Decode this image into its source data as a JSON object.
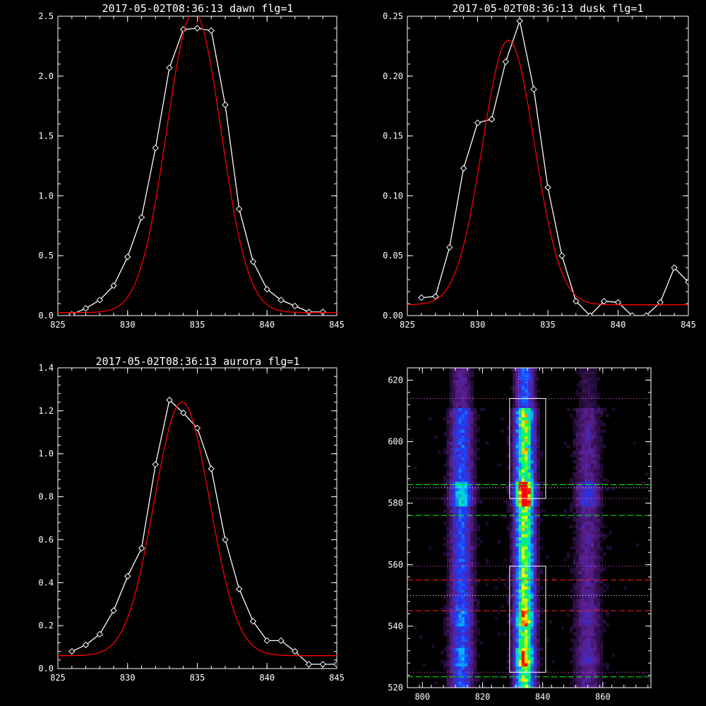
{
  "chart_data": [
    {
      "type": "line",
      "title": "2017-05-02T08:36:13 dawn flg=1",
      "xlim": [
        825,
        845
      ],
      "ylim": [
        0,
        2.5
      ],
      "xticks": [
        825,
        830,
        835,
        840,
        845
      ],
      "yticks": [
        0.0,
        0.5,
        1.0,
        1.5,
        2.0,
        2.5
      ],
      "ytick_labels": [
        "0.0",
        "0.5",
        "1.0",
        "1.5",
        "2.0",
        "2.5"
      ],
      "grid": false,
      "series": [
        {
          "color": "#ffffff",
          "markers": "diamond",
          "x": [
            826,
            827,
            828,
            829,
            830,
            831,
            832,
            833,
            834,
            835,
            836,
            837,
            838,
            839,
            840,
            841,
            842,
            843,
            844
          ],
          "y": [
            0.01,
            0.06,
            0.13,
            0.25,
            0.49,
            0.82,
            1.4,
            2.07,
            2.39,
            2.4,
            2.38,
            1.76,
            0.89,
            0.45,
            0.22,
            0.13,
            0.08,
            0.03,
            0.03
          ]
        },
        {
          "color": "#ff0000",
          "model": "gaussian",
          "amplitude": 2.51,
          "center": 834.75,
          "sigma": 1.95,
          "baseline": 0.025
        }
      ]
    },
    {
      "type": "line",
      "title": "2017-05-02T08:36:13 dusk flg=1",
      "xlim": [
        825,
        845
      ],
      "ylim": [
        0,
        0.25
      ],
      "xticks": [
        825,
        830,
        835,
        840,
        845
      ],
      "yticks": [
        0.0,
        0.05,
        0.1,
        0.15,
        0.2,
        0.25
      ],
      "ytick_labels": [
        "0.00",
        "0.05",
        "0.10",
        "0.15",
        "0.20",
        "0.25"
      ],
      "grid": false,
      "series": [
        {
          "color": "#ffffff",
          "markers": "diamond",
          "x": [
            826,
            827,
            828,
            829,
            830,
            831,
            832,
            833,
            834,
            835,
            836,
            837,
            838,
            839,
            840,
            841,
            842,
            843,
            844,
            845
          ],
          "y": [
            0.015,
            0.016,
            0.057,
            0.123,
            0.161,
            0.164,
            0.212,
            0.246,
            0.189,
            0.107,
            0.05,
            0.012,
            0.0,
            0.012,
            0.011,
            0.0,
            0.0,
            0.011,
            0.04,
            0.028
          ]
        },
        {
          "color": "#ff0000",
          "model": "gaussian",
          "amplitude": 0.221,
          "center": 832.2,
          "sigma": 1.85,
          "baseline": 0.009
        }
      ]
    },
    {
      "type": "line",
      "title": "2017-05-02T08:36:13 aurora flg=1",
      "xlim": [
        825,
        845
      ],
      "ylim": [
        0,
        1.4
      ],
      "xticks": [
        825,
        830,
        835,
        840,
        845
      ],
      "yticks": [
        0.0,
        0.2,
        0.4,
        0.6,
        0.8,
        1.0,
        1.2,
        1.4
      ],
      "ytick_labels": [
        "0.0",
        "0.2",
        "0.4",
        "0.6",
        "0.8",
        "1.0",
        "1.2",
        "1.4"
      ],
      "grid": false,
      "series": [
        {
          "color": "#ffffff",
          "markers": "diamond",
          "x": [
            826,
            827,
            828,
            829,
            830,
            831,
            832,
            833,
            834,
            835,
            836,
            837,
            838,
            839,
            840,
            841,
            842,
            843,
            844,
            845
          ],
          "y": [
            0.08,
            0.11,
            0.16,
            0.27,
            0.43,
            0.56,
            0.95,
            1.25,
            1.19,
            1.12,
            0.93,
            0.6,
            0.37,
            0.22,
            0.13,
            0.13,
            0.08,
            0.02,
            0.02,
            0.02
          ]
        },
        {
          "color": "#ff0000",
          "model": "gaussian",
          "amplitude": 1.18,
          "center": 833.9,
          "sigma": 2.0,
          "baseline": 0.06
        }
      ]
    },
    {
      "type": "heatmap",
      "xlim": [
        795,
        876
      ],
      "ylim": [
        520,
        624
      ],
      "xticks": [
        800,
        820,
        840,
        860
      ],
      "yticks": [
        520,
        540,
        560,
        580,
        600,
        620
      ],
      "colormap": [
        "#000000",
        "#5a1e8c",
        "#1e3cff",
        "#00c8ff",
        "#00ff50",
        "#ffff00",
        "#ff0000"
      ],
      "intensity_columns": [
        {
          "x": 813,
          "width": 3.5,
          "peak": 0.45
        },
        {
          "x": 834,
          "width": 3.0,
          "peak": 1.0
        },
        {
          "x": 855,
          "width": 4.0,
          "peak": 0.22
        }
      ],
      "intensity_rows": [
        {
          "y": 583,
          "half_height": 4,
          "boost": 0.45
        },
        {
          "y": 543,
          "half_height": 3,
          "boost": 0.2
        },
        {
          "y": 530,
          "half_height": 3,
          "boost": 0.2
        }
      ],
      "boxes": [
        {
          "x0": 829,
          "x1": 841,
          "y0": 581.5,
          "y1": 614,
          "color": "#ffffff"
        },
        {
          "x0": 829,
          "x1": 841,
          "y0": 525,
          "y1": 559.5,
          "color": "#ffffff"
        }
      ],
      "hlines": [
        {
          "y": 614,
          "color": "#ff66ff",
          "style": "dotted"
        },
        {
          "y": 586,
          "color": "#00ff00",
          "style": "dashed"
        },
        {
          "y": 585,
          "color": "#ffffff",
          "style": "dotted"
        },
        {
          "y": 581.5,
          "color": "#ff66ff",
          "style": "dotted"
        },
        {
          "y": 576,
          "color": "#00ff00",
          "style": "dashed"
        },
        {
          "y": 559.5,
          "color": "#ff66ff",
          "style": "dotted"
        },
        {
          "y": 555,
          "color": "#ff2020",
          "style": "dashed"
        },
        {
          "y": 550,
          "color": "#ffffff",
          "style": "dotted"
        },
        {
          "y": 545,
          "color": "#ff2020",
          "style": "dashed"
        },
        {
          "y": 525,
          "color": "#ff66ff",
          "style": "dotted"
        },
        {
          "y": 523.5,
          "color": "#00ff00",
          "style": "dashed"
        }
      ],
      "vlines": [
        {
          "x": 832,
          "color": "#ff66ff",
          "style": "dotted"
        },
        {
          "x": 835,
          "color": "#ff66ff",
          "style": "dotted"
        }
      ]
    }
  ]
}
